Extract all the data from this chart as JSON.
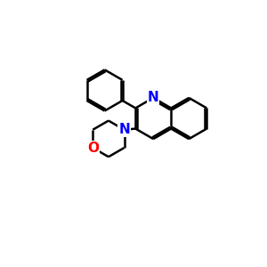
{
  "background_color": "#ffffff",
  "bond_color": "#000000",
  "N_color": "#0000ff",
  "O_color": "#ff0000",
  "line_width": 1.8,
  "figsize": [
    3.0,
    3.0
  ],
  "dpi": 100,
  "xlim": [
    0,
    10
  ],
  "ylim": [
    0,
    10
  ],
  "label_fontsize": 11,
  "label_bg": "#ffffff"
}
